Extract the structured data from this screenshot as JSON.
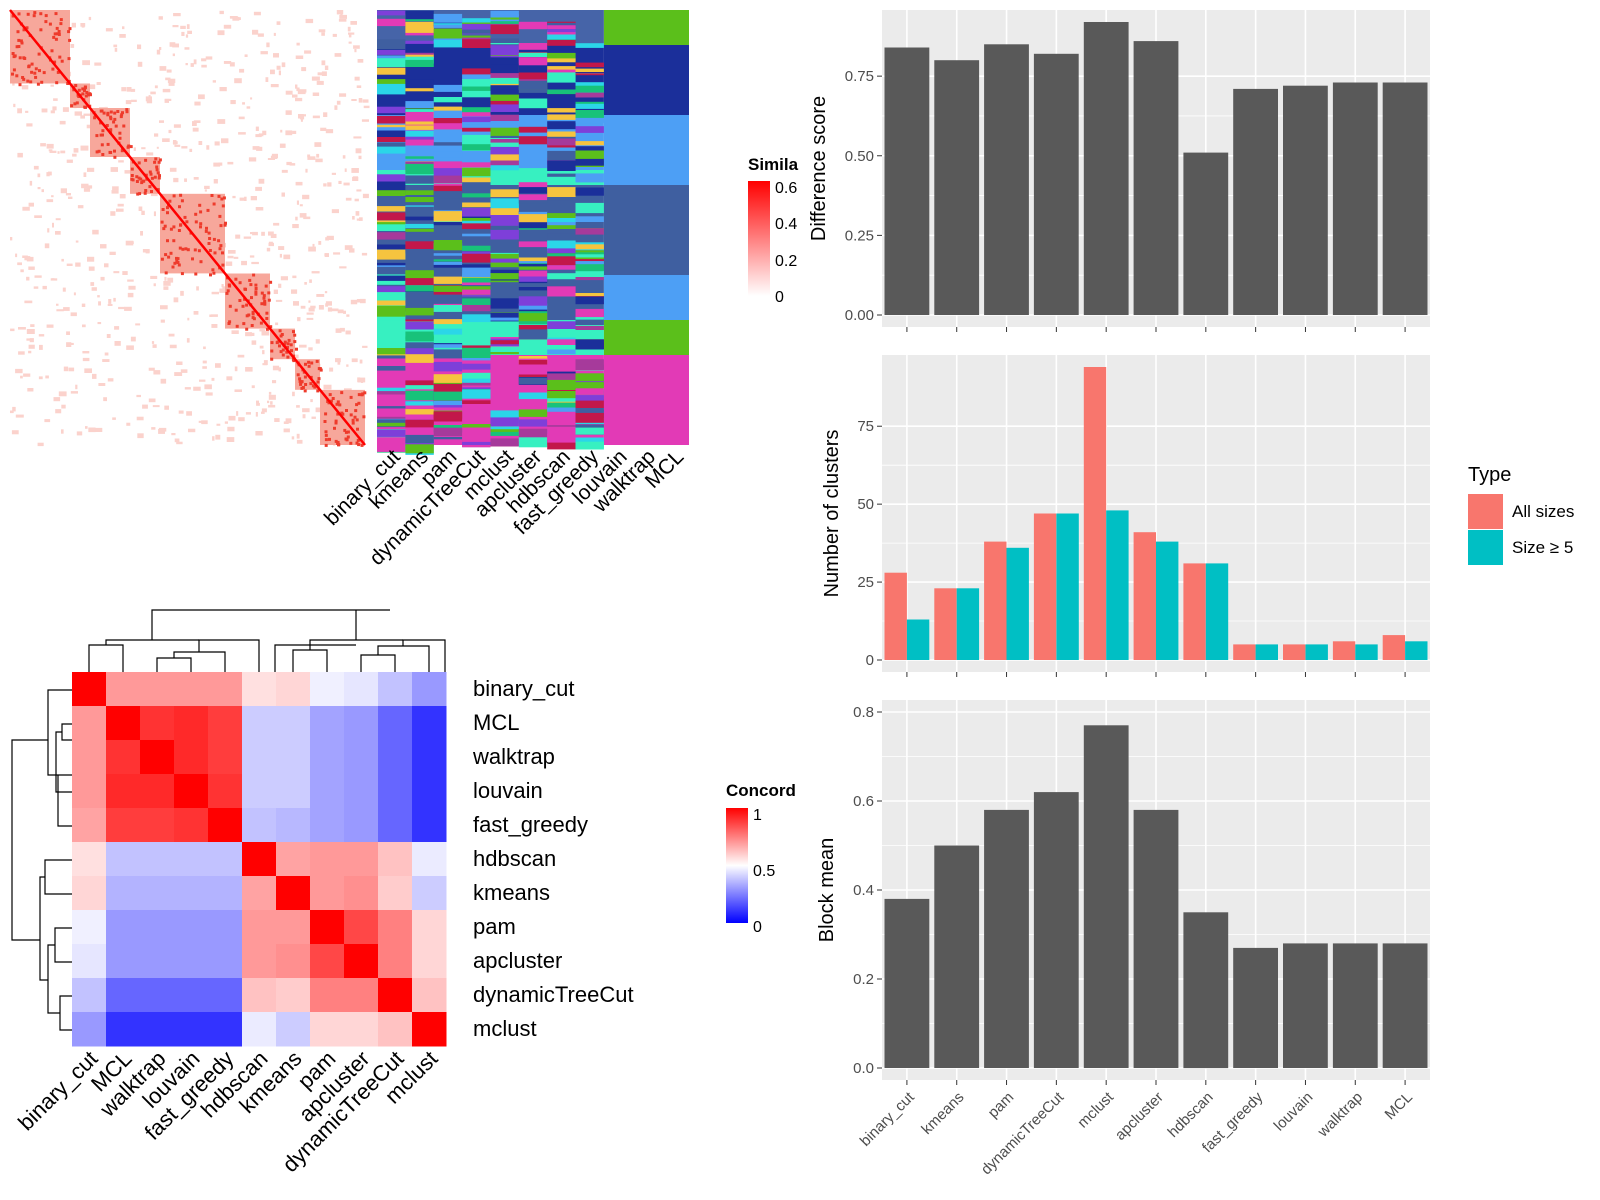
{
  "top_left": {
    "legend_title": "Simila",
    "legend_ticks": [
      "0.6",
      "0.4",
      "0.2",
      "0"
    ],
    "methods": [
      "binary_cut",
      "kmeans",
      "pam",
      "dynamicTreeCut",
      "mclust",
      "apcluster",
      "hdbscan",
      "fast_greedy",
      "louvain",
      "walktrap",
      "MCL"
    ]
  },
  "bottom_left": {
    "legend_title": "Concord",
    "legend_ticks": [
      "1",
      "0.5",
      "0"
    ],
    "row_labels": [
      "binary_cut",
      "MCL",
      "walktrap",
      "louvain",
      "fast_greedy",
      "hdbscan",
      "kmeans",
      "pam",
      "apcluster",
      "dynamicTreeCut",
      "mclust"
    ],
    "col_labels": [
      "binary_cut",
      "MCL",
      "walktrap",
      "louvain",
      "fast_greedy",
      "hdbscan",
      "kmeans",
      "pam",
      "apcluster",
      "dynamicTreeCut",
      "mclust"
    ],
    "matrix": [
      [
        1.0,
        0.7,
        0.7,
        0.7,
        0.7,
        0.56,
        0.58,
        0.47,
        0.45,
        0.38,
        0.3
      ],
      [
        0.7,
        1.0,
        0.9,
        0.92,
        0.88,
        0.4,
        0.4,
        0.32,
        0.3,
        0.2,
        0.1
      ],
      [
        0.7,
        0.9,
        1.0,
        0.92,
        0.88,
        0.4,
        0.4,
        0.32,
        0.3,
        0.2,
        0.1
      ],
      [
        0.7,
        0.92,
        0.92,
        1.0,
        0.9,
        0.4,
        0.4,
        0.32,
        0.3,
        0.2,
        0.1
      ],
      [
        0.68,
        0.88,
        0.88,
        0.9,
        1.0,
        0.38,
        0.36,
        0.32,
        0.3,
        0.2,
        0.1
      ],
      [
        0.56,
        0.38,
        0.38,
        0.38,
        0.38,
        1.0,
        0.68,
        0.7,
        0.7,
        0.62,
        0.46
      ],
      [
        0.58,
        0.35,
        0.35,
        0.35,
        0.35,
        0.68,
        1.0,
        0.7,
        0.72,
        0.6,
        0.4
      ],
      [
        0.47,
        0.3,
        0.3,
        0.3,
        0.3,
        0.7,
        0.7,
        1.0,
        0.86,
        0.75,
        0.58
      ],
      [
        0.45,
        0.3,
        0.3,
        0.3,
        0.3,
        0.7,
        0.72,
        0.86,
        1.0,
        0.75,
        0.58
      ],
      [
        0.38,
        0.2,
        0.2,
        0.2,
        0.2,
        0.62,
        0.6,
        0.75,
        0.75,
        1.0,
        0.62
      ],
      [
        0.3,
        0.1,
        0.1,
        0.1,
        0.1,
        0.46,
        0.4,
        0.58,
        0.58,
        0.62,
        1.0
      ]
    ]
  },
  "colors": {
    "bar_gray": "#595959",
    "panel_bg": "#EBEBEB",
    "all_sizes": "#F8766D",
    "size_ge5": "#00BFC4",
    "heat_high": "#FF0000",
    "heat_mid": "#FFFFFF",
    "heat_low": "#0000FF"
  },
  "chart_data": [
    {
      "type": "bar",
      "categories": [
        "binary_cut",
        "kmeans",
        "pam",
        "dynamicTreeCut",
        "mclust",
        "apcluster",
        "hdbscan",
        "fast_greedy",
        "louvain",
        "walktrap",
        "MCL"
      ],
      "values": [
        0.84,
        0.8,
        0.85,
        0.82,
        0.92,
        0.86,
        0.51,
        0.71,
        0.72,
        0.73,
        0.73
      ],
      "ylabel": "Difference score",
      "ylim": [
        0,
        0.92
      ],
      "yticks": [
        "0.00",
        "0.25",
        "0.50",
        "0.75"
      ],
      "grid": true
    },
    {
      "type": "bar",
      "categories": [
        "binary_cut",
        "kmeans",
        "pam",
        "dynamicTreeCut",
        "mclust",
        "apcluster",
        "hdbscan",
        "fast_greedy",
        "louvain",
        "walktrap",
        "MCL"
      ],
      "series": [
        {
          "name": "All sizes",
          "values": [
            28,
            23,
            38,
            47,
            94,
            41,
            31,
            5,
            5,
            6,
            8
          ]
        },
        {
          "name": "Size ≥ 5",
          "values": [
            13,
            23,
            36,
            47,
            48,
            38,
            31,
            5,
            5,
            5,
            6
          ]
        }
      ],
      "ylabel": "Number of clusters",
      "ylim": [
        0,
        94
      ],
      "yticks": [
        "0",
        "25",
        "50",
        "75"
      ],
      "legend_title": "Type",
      "legend_position": "right",
      "grid": true
    },
    {
      "type": "bar",
      "categories": [
        "binary_cut",
        "kmeans",
        "pam",
        "dynamicTreeCut",
        "mclust",
        "apcluster",
        "hdbscan",
        "fast_greedy",
        "louvain",
        "walktrap",
        "MCL"
      ],
      "values": [
        0.38,
        0.5,
        0.58,
        0.62,
        0.77,
        0.58,
        0.35,
        0.27,
        0.28,
        0.28,
        0.28
      ],
      "ylabel": "Block mean",
      "ylim": [
        0,
        0.8
      ],
      "yticks": [
        "0.0",
        "0.2",
        "0.4",
        "0.6",
        "0.8"
      ],
      "grid": true
    }
  ]
}
